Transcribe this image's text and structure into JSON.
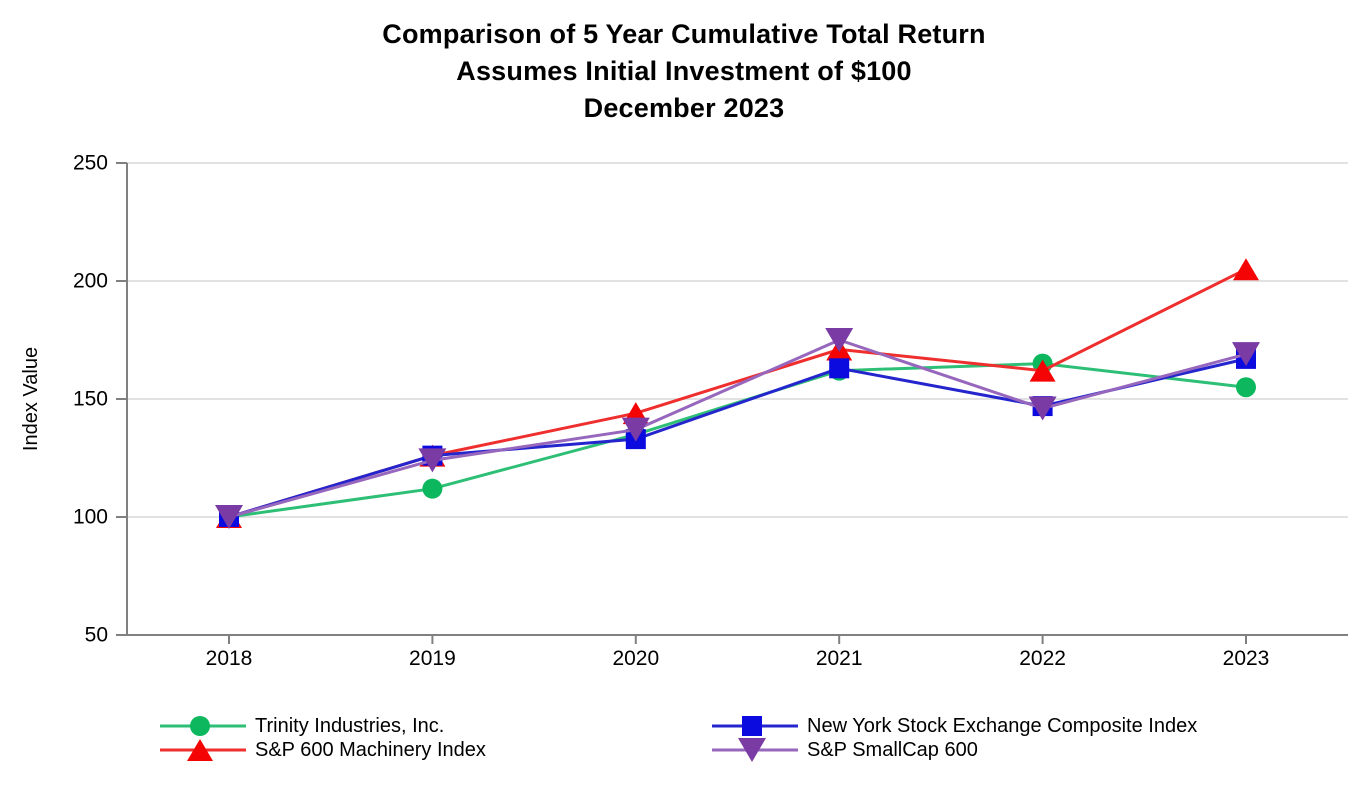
{
  "title": {
    "line1": "Comparison of 5 Year Cumulative Total Return",
    "line2": "Assumes Initial Investment of $100",
    "line3": "December 2023"
  },
  "y_axis": {
    "label": "Index Value",
    "min": 50,
    "max": 250,
    "ticks": [
      50,
      100,
      150,
      200,
      250
    ],
    "gridlines": [
      100,
      150,
      200,
      250
    ]
  },
  "x_axis": {
    "categories": [
      "2018",
      "2019",
      "2020",
      "2021",
      "2022",
      "2023"
    ]
  },
  "chart_data": {
    "type": "line",
    "title": "Comparison of 5 Year Cumulative Total Return Assumes Initial Investment of $100 December 2023",
    "xlabel": "",
    "ylabel": "Index Value",
    "ylim": [
      50,
      250
    ],
    "grid": "horizontal",
    "legend_position": "bottom",
    "categories": [
      "2018",
      "2019",
      "2020",
      "2021",
      "2022",
      "2023"
    ],
    "draw_order": [
      0,
      2,
      1,
      3
    ],
    "series": [
      {
        "id": "trinity",
        "name": "Trinity Industries, Inc.",
        "marker": "circle",
        "color": "#0CB75E",
        "line_color": "#2EBF76",
        "values": [
          100,
          112,
          135,
          162,
          165,
          155
        ]
      },
      {
        "id": "nyse-composite",
        "name": "New York Stock Exchange Composite Index",
        "marker": "square",
        "color": "#0B0BE0",
        "line_color": "#2525CE",
        "values": [
          100,
          126,
          133,
          163,
          147,
          167
        ]
      },
      {
        "id": "sp600-machinery",
        "name": "S&P 600 Machinery Index",
        "marker": "triangle-up",
        "color": "#F40404",
        "line_color": "#EF2E2E",
        "values": [
          100,
          126,
          144,
          171,
          162,
          205
        ]
      },
      {
        "id": "sp-smallcap-600",
        "name": "S&P SmallCap 600",
        "marker": "triangle-down",
        "color": "#7A3BA5",
        "line_color": "#9767BE",
        "values": [
          100,
          124,
          137,
          175,
          146,
          169
        ]
      }
    ]
  },
  "legend": {
    "items": [
      {
        "label": "Trinity Industries, Inc.",
        "series_index": 0,
        "column": 0,
        "row": 0
      },
      {
        "label": "S&P 600 Machinery Index",
        "series_index": 2,
        "column": 0,
        "row": 1
      },
      {
        "label": "New York Stock Exchange Composite Index",
        "series_index": 1,
        "column": 1,
        "row": 0
      },
      {
        "label": "S&P SmallCap 600",
        "series_index": 3,
        "column": 1,
        "row": 1
      }
    ]
  },
  "colors": {
    "axis": "#808080",
    "grid": "#D8D8D8",
    "text": "#000000",
    "background": "#FFFFFF"
  }
}
